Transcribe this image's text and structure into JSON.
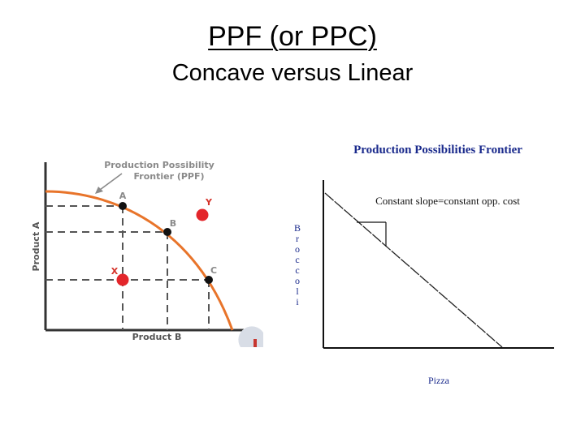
{
  "slide": {
    "title": "PPF (or PPC)",
    "subtitle": "Concave versus Linear"
  },
  "left_figure": {
    "callout": [
      "Production Possibility",
      "Frontier (PPF)"
    ],
    "y_axis_label": "Product A",
    "x_axis_label": "Product B",
    "point_labels": {
      "A": "A",
      "B": "B",
      "C": "C",
      "X": "X",
      "Y": "Y"
    },
    "colors": {
      "curve": "#e8742a",
      "label": "#8a8a8a",
      "dot_inside": "#e3262b",
      "dot_on": "#111111",
      "y_label": "#d4332a"
    }
  },
  "right_figure": {
    "title": "Production Possibilities Frontier",
    "slope_note": "Constant slope=constant opp. cost",
    "y_axis_label_letters": [
      "B",
      "r",
      "o",
      "c",
      "c",
      "o",
      "l",
      "i"
    ],
    "x_axis_label": "Pizza",
    "colors": {
      "text": "#1a2a8c"
    }
  }
}
